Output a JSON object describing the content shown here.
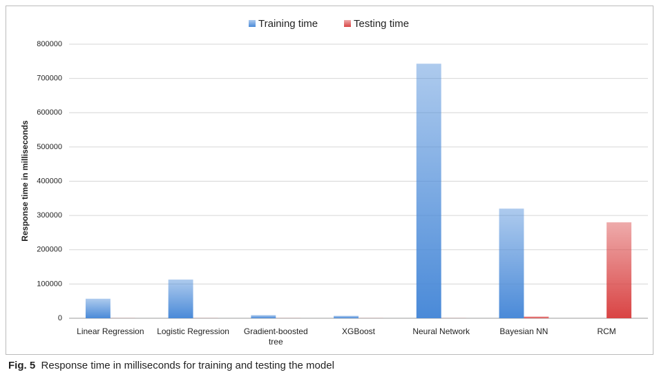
{
  "chart_data": {
    "type": "bar",
    "y_label": "Response time in milliseconds",
    "categories": [
      "Linear Regression",
      "Logistic Regression",
      "Gradient-boosted tree",
      "XGBoost",
      "Neural Network",
      "Bayesian NN",
      "RCM"
    ],
    "series": [
      {
        "name": "Training time",
        "color": "#4a8ad8",
        "values": [
          57000,
          113000,
          9000,
          7000,
          743000,
          320000,
          0
        ]
      },
      {
        "name": "Testing time",
        "color": "#d94444",
        "values": [
          500,
          500,
          500,
          500,
          500,
          5000,
          280000
        ]
      }
    ],
    "ylim": [
      0,
      800000
    ],
    "yticks": [
      0,
      100000,
      200000,
      300000,
      400000,
      500000,
      600000,
      700000,
      800000
    ],
    "grid": true,
    "legend": "top"
  },
  "caption": {
    "label": "Fig. 5",
    "text": "Response time in milliseconds for training and testing the model"
  }
}
